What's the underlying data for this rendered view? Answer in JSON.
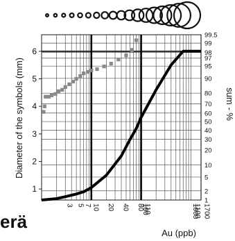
{
  "chart_data": {
    "type": "line",
    "xlabel": "Au (ppb)",
    "ylabel_left": "Diameter of the symbols (mm)",
    "ylabel_right": "sum - %",
    "left_axis": {
      "ylim": [
        0.6,
        6.6
      ],
      "ticks": [
        "1",
        "2",
        "3",
        "4",
        "5",
        "6"
      ]
    },
    "right_axis": {
      "scale": "probability",
      "ticks": [
        "1",
        "2",
        "5",
        "10",
        "20",
        "30",
        "40",
        "50",
        "60",
        "70",
        "80",
        "90",
        "95",
        "97",
        "98",
        "99",
        "99.5"
      ]
    },
    "x_axis": {
      "scale": "log",
      "xlim": [
        1,
        1600
      ],
      "ticks": [
        "3",
        "5",
        "7",
        "10",
        "20",
        "40",
        "80",
        "100",
        "110",
        "1000",
        "1100",
        "1700"
      ]
    },
    "grid": true,
    "highlighted_lines": {
      "x_values": [
        10,
        100
      ],
      "y_values": [
        6
      ]
    },
    "series": [
      {
        "id": "symbol-diameter",
        "color": "#000000",
        "points": [
          [
            1,
            0.6
          ],
          [
            2,
            0.65
          ],
          [
            3,
            0.72
          ],
          [
            5,
            0.82
          ],
          [
            7,
            0.9
          ],
          [
            10,
            1.05
          ],
          [
            20,
            1.5
          ],
          [
            40,
            2.2
          ],
          [
            60,
            2.8
          ],
          [
            80,
            3.2
          ],
          [
            100,
            3.6
          ],
          [
            200,
            4.6
          ],
          [
            400,
            5.5
          ],
          [
            700,
            6.0
          ],
          [
            1000,
            6.0
          ],
          [
            1600,
            6.0
          ]
        ]
      },
      {
        "id": "cumulative-frequency",
        "color": "#888888",
        "points": [
          [
            1.1,
            3.8
          ],
          [
            1.15,
            4.0
          ],
          [
            1.2,
            4.35
          ],
          [
            1.4,
            4.35
          ],
          [
            1.6,
            4.4
          ],
          [
            1.9,
            4.45
          ],
          [
            2.2,
            4.55
          ],
          [
            2.6,
            4.6
          ],
          [
            3,
            4.7
          ],
          [
            3.6,
            4.8
          ],
          [
            4.3,
            4.9
          ],
          [
            5,
            5.0
          ],
          [
            6,
            5.1
          ],
          [
            7,
            5.2
          ],
          [
            8.5,
            5.25
          ],
          [
            10,
            5.3
          ],
          [
            13,
            5.35
          ],
          [
            18,
            5.45
          ],
          [
            25,
            5.55
          ],
          [
            35,
            5.7
          ],
          [
            50,
            5.85
          ],
          [
            65,
            6.05
          ],
          [
            80,
            6.4
          ]
        ]
      }
    ],
    "symbol_scale": {
      "symbol": "circle",
      "diameters_mm": [
        0.6,
        0.7,
        0.8,
        0.9,
        1.0,
        1.1,
        1.3,
        1.5,
        1.7,
        2.0,
        2.3,
        2.7,
        3.1,
        3.6,
        4.1,
        4.7,
        5.3,
        6.0
      ]
    }
  },
  "corner_text": "erä"
}
